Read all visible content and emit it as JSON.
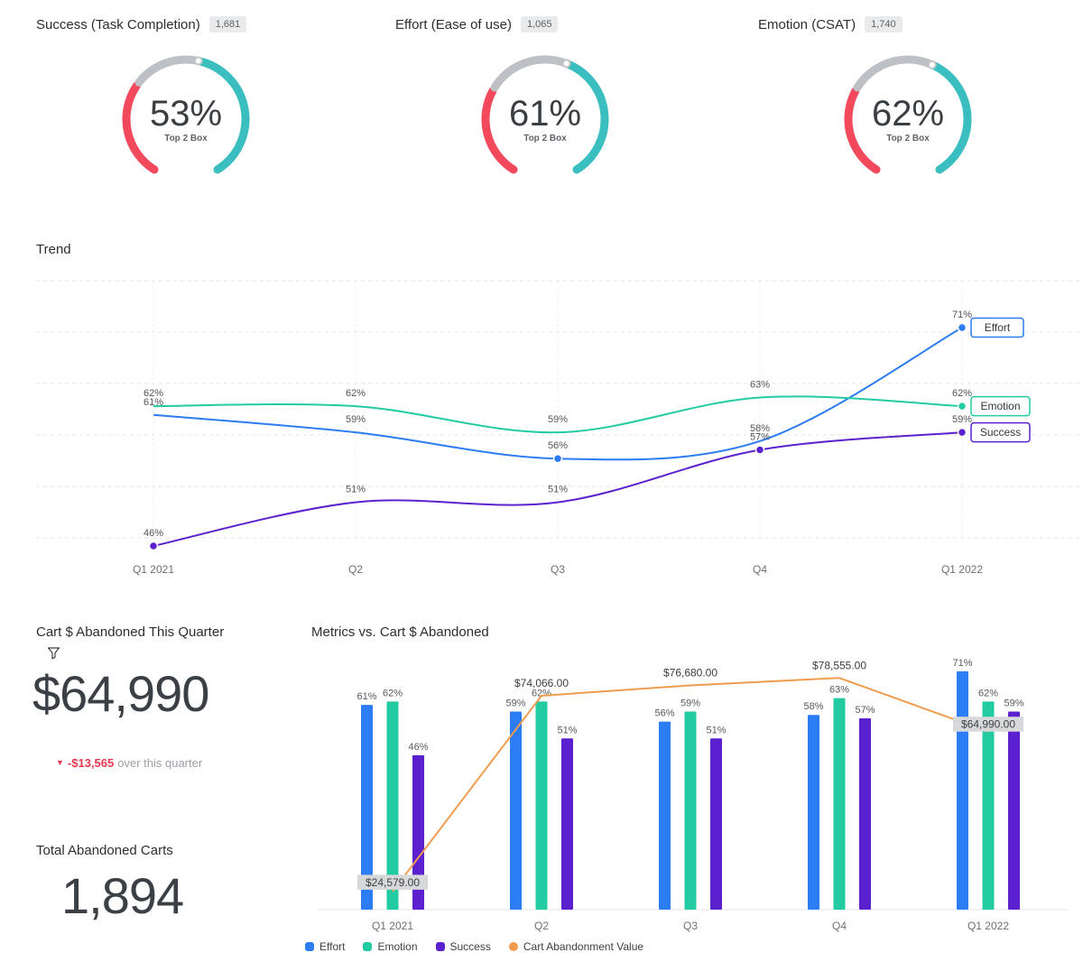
{
  "colors": {
    "gauge_negative": "#F2495C",
    "gauge_neutral": "#BDC0C4",
    "gauge_positive": "#3BBEC0",
    "delta_negative": "#E8384F",
    "effort": "#2C7CF3",
    "emotion": "#22CBA2",
    "success": "#5B21CE",
    "cart_line": "#EF9C4F"
  },
  "kpis": {
    "cart_value": {
      "title": "Cart $ Abandoned This Quarter",
      "value": "$64,990",
      "delta": "-$13,565",
      "delta_desc": "over this quarter"
    },
    "total_carts": {
      "title": "Total Abandoned Carts",
      "value": "1,894"
    }
  },
  "chart_data": [
    {
      "type": "gauge",
      "title": "Success (Task Completion)",
      "count_label": "1,681",
      "value_label": "53%",
      "subtitle": "Top 2 Box",
      "segments": {
        "negative": 0.32,
        "neutral": 0.22,
        "positive": 0.46
      }
    },
    {
      "type": "gauge",
      "title": "Effort (Ease of use)",
      "count_label": "1,065",
      "value_label": "61%",
      "subtitle": "Top 2 Box",
      "segments": {
        "negative": 0.3,
        "neutral": 0.27,
        "positive": 0.43
      }
    },
    {
      "type": "gauge",
      "title": "Emotion (CSAT)",
      "count_label": "1,740",
      "value_label": "62%",
      "subtitle": "Top 2 Box",
      "segments": {
        "negative": 0.3,
        "neutral": 0.28,
        "positive": 0.42
      }
    },
    {
      "type": "line",
      "title": "Trend",
      "categories": [
        "Q1 2021",
        "Q2",
        "Q3",
        "Q4",
        "Q1 2022"
      ],
      "ylim": [
        44,
        75
      ],
      "grid": true,
      "legend_position": "right-chips",
      "series": [
        {
          "name": "Effort",
          "color": "#2C7CF3",
          "values": [
            61,
            59,
            56,
            58,
            71
          ],
          "marker_points": [
            2,
            4
          ]
        },
        {
          "name": "Emotion",
          "color": "#22CBA2",
          "values": [
            62,
            62,
            59,
            63,
            62
          ],
          "marker_points": [
            4
          ]
        },
        {
          "name": "Success",
          "color": "#5B21CE",
          "values": [
            46,
            51,
            51,
            57,
            59
          ],
          "marker_points": [
            0,
            3,
            4
          ]
        }
      ]
    },
    {
      "type": "combo",
      "title": "Metrics vs. Cart $ Abandoned",
      "categories": [
        "Q1 2021",
        "Q2",
        "Q3",
        "Q4",
        "Q1 2022"
      ],
      "bar_ylim": [
        0,
        80
      ],
      "legend_position": "bottom",
      "bar_series": [
        {
          "name": "Effort",
          "color": "#2C7CF3",
          "values": [
            61,
            59,
            56,
            58,
            71
          ]
        },
        {
          "name": "Emotion",
          "color": "#22CBA2",
          "values": [
            62,
            62,
            59,
            63,
            62
          ]
        },
        {
          "name": "Success",
          "color": "#5B21CE",
          "values": [
            46,
            51,
            51,
            57,
            59
          ]
        }
      ],
      "line_series": {
        "name": "Cart Abandonment Value",
        "color": "#EF9C4F",
        "values": [
          24579,
          74066,
          76680,
          78555,
          64990
        ],
        "value_labels": [
          "$24,579.00",
          "$74,066.00",
          "$76,680.00",
          "$78,555.00",
          "$64,990.00"
        ],
        "labels_with_background": [
          0,
          4
        ]
      }
    }
  ]
}
